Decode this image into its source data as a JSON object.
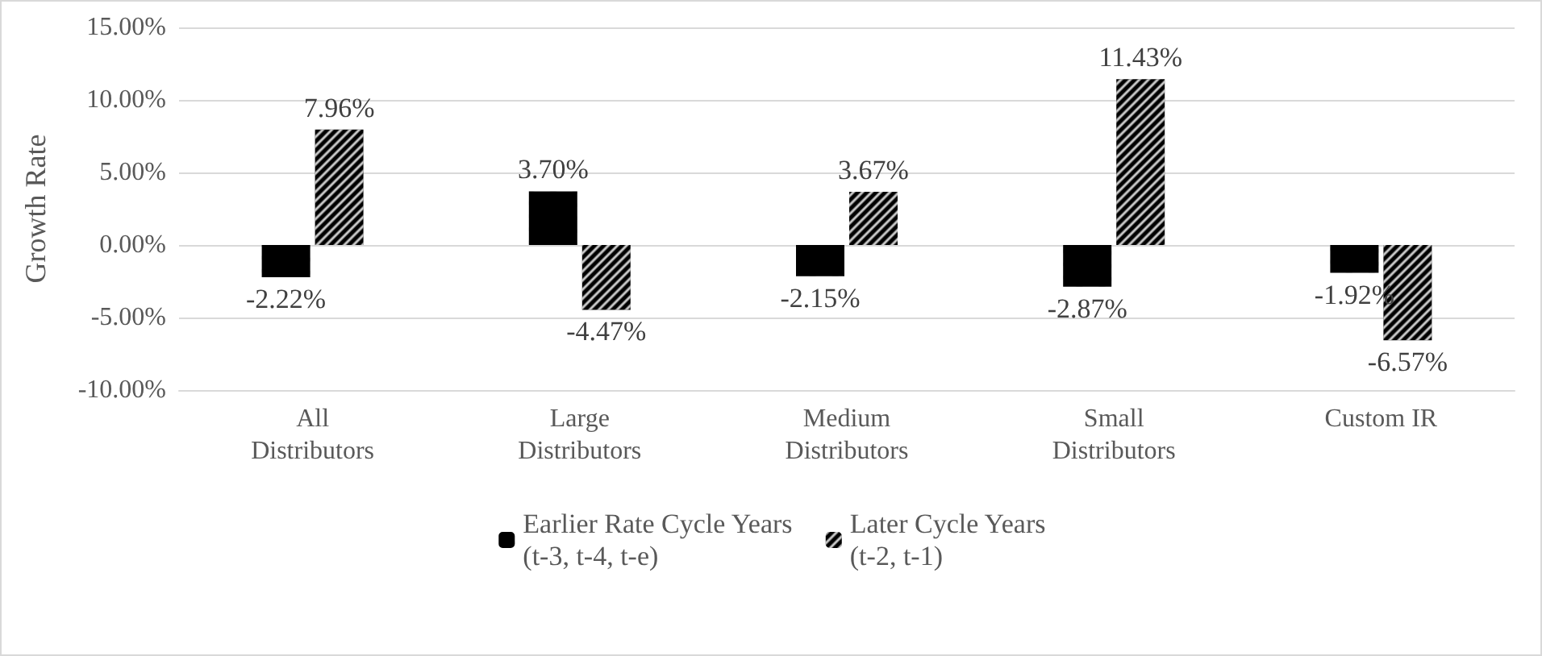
{
  "chart_data": {
    "type": "bar",
    "ylabel": "Growth Rate",
    "categories": [
      "All\nDistributors",
      "Large\nDistributors",
      "Medium\nDistributors",
      "Small\nDistributors",
      "Custom IR"
    ],
    "series": [
      {
        "name": "Earlier Rate Cycle Years\n(t-3, t-4, t-e)",
        "color": "#000000",
        "values": [
          -2.22,
          3.7,
          -2.15,
          -2.87,
          -1.92
        ],
        "value_labels": [
          "-2.22%",
          "3.70%",
          "-2.15%",
          "-2.87%",
          "-1.92%"
        ]
      },
      {
        "name": "Later Cycle Years\n(t-2, t-1)",
        "color": "#000000",
        "values": [
          7.96,
          -4.47,
          3.67,
          11.43,
          -6.57
        ],
        "value_labels": [
          "7.96%",
          "-4.47%",
          "3.67%",
          "11.43%",
          "-6.57%"
        ]
      }
    ],
    "ylim": [
      -10,
      15
    ],
    "yticks": [
      {
        "value": -10,
        "label": "-10.00%"
      },
      {
        "value": -5,
        "label": "-5.00%"
      },
      {
        "value": 0,
        "label": "0.00%"
      },
      {
        "value": 5,
        "label": "5.00%"
      },
      {
        "value": 10,
        "label": "10.00%"
      },
      {
        "value": 15,
        "label": "15.00%"
      }
    ],
    "grid": "y",
    "legend": "bottom"
  }
}
